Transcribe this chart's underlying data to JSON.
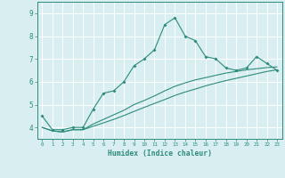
{
  "xlabel": "Humidex (Indice chaleur)",
  "x_values": [
    0,
    1,
    2,
    3,
    4,
    5,
    6,
    7,
    8,
    9,
    10,
    11,
    12,
    13,
    14,
    15,
    16,
    17,
    18,
    19,
    20,
    21,
    22,
    23
  ],
  "line1_y": [
    4.5,
    3.9,
    3.9,
    4.0,
    4.0,
    4.8,
    5.5,
    5.6,
    6.0,
    6.7,
    7.0,
    7.4,
    8.5,
    8.8,
    8.0,
    7.8,
    7.1,
    7.0,
    6.6,
    6.5,
    6.6,
    7.1,
    6.8,
    6.5
  ],
  "line2_y": [
    4.0,
    3.85,
    3.8,
    3.9,
    3.9,
    4.05,
    4.2,
    4.35,
    4.52,
    4.7,
    4.88,
    5.05,
    5.22,
    5.4,
    5.55,
    5.68,
    5.82,
    5.94,
    6.05,
    6.15,
    6.25,
    6.35,
    6.45,
    6.52
  ],
  "line3_y": [
    4.0,
    3.85,
    3.8,
    3.9,
    3.9,
    4.15,
    4.35,
    4.55,
    4.75,
    5.0,
    5.18,
    5.38,
    5.6,
    5.8,
    5.95,
    6.08,
    6.18,
    6.28,
    6.38,
    6.45,
    6.52,
    6.57,
    6.62,
    6.65
  ],
  "line_color": "#2e8b7a",
  "bg_color": "#d8eef0",
  "grid_color": "#ffffff",
  "ylim": [
    3.5,
    9.5
  ],
  "xlim": [
    -0.5,
    23.5
  ],
  "yticks": [
    4,
    5,
    6,
    7,
    8,
    9
  ],
  "xticks": [
    0,
    1,
    2,
    3,
    4,
    5,
    6,
    7,
    8,
    9,
    10,
    11,
    12,
    13,
    14,
    15,
    16,
    17,
    18,
    19,
    20,
    21,
    22,
    23
  ]
}
